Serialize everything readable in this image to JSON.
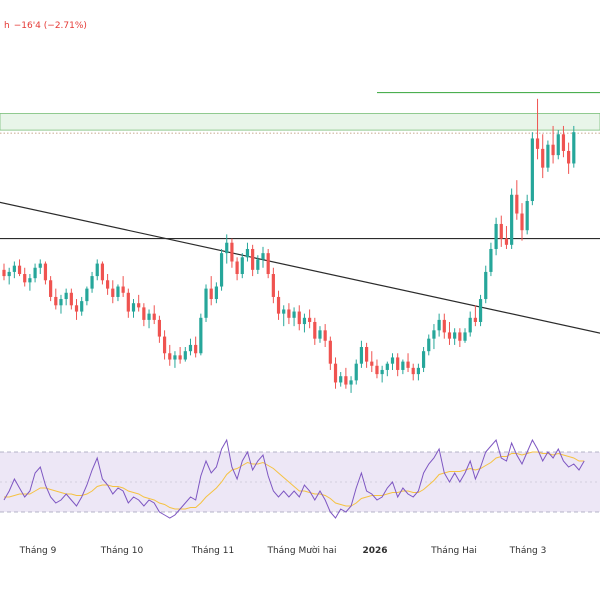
{
  "header": {
    "change_prefix": "h",
    "change_text": "−16'4 (−2.71%)"
  },
  "colors": {
    "up": "#26a69a",
    "down": "#ef5350",
    "trendline": "#2b2b2b",
    "resistance_line": "#2b2b2b",
    "supply_zone_fill": "#e8f5e9",
    "supply_zone_border": "#7bbf7b",
    "top_line": "#4caf50",
    "rsi_line": "#7e57c2",
    "rsi_ma": "#f5c242",
    "rsi_band": "#ede7f6"
  },
  "x_axis": {
    "labels": [
      "Tháng 9",
      "Tháng 10",
      "Tháng 11",
      "Tháng Mười hai",
      "2026",
      "Tháng Hai",
      "Tháng 3"
    ]
  },
  "chart_data": {
    "type": "candlestick",
    "price_series": [
      {
        "o": 565,
        "h": 568,
        "l": 560,
        "c": 562
      },
      {
        "o": 562,
        "h": 566,
        "l": 558,
        "c": 564
      },
      {
        "o": 564,
        "h": 569,
        "l": 561,
        "c": 567
      },
      {
        "o": 567,
        "h": 570,
        "l": 562,
        "c": 563
      },
      {
        "o": 563,
        "h": 566,
        "l": 557,
        "c": 559
      },
      {
        "o": 559,
        "h": 563,
        "l": 555,
        "c": 561
      },
      {
        "o": 561,
        "h": 568,
        "l": 559,
        "c": 566
      },
      {
        "o": 566,
        "h": 570,
        "l": 563,
        "c": 568
      },
      {
        "o": 568,
        "h": 569,
        "l": 558,
        "c": 560
      },
      {
        "o": 560,
        "h": 562,
        "l": 550,
        "c": 552
      },
      {
        "o": 552,
        "h": 556,
        "l": 546,
        "c": 548
      },
      {
        "o": 548,
        "h": 553,
        "l": 544,
        "c": 551
      },
      {
        "o": 551,
        "h": 556,
        "l": 548,
        "c": 554
      },
      {
        "o": 554,
        "h": 556,
        "l": 546,
        "c": 548
      },
      {
        "o": 548,
        "h": 551,
        "l": 541,
        "c": 545
      },
      {
        "o": 545,
        "h": 552,
        "l": 543,
        "c": 550
      },
      {
        "o": 550,
        "h": 557,
        "l": 548,
        "c": 556
      },
      {
        "o": 556,
        "h": 564,
        "l": 554,
        "c": 562
      },
      {
        "o": 562,
        "h": 570,
        "l": 560,
        "c": 568
      },
      {
        "o": 568,
        "h": 569,
        "l": 558,
        "c": 560
      },
      {
        "o": 560,
        "h": 563,
        "l": 553,
        "c": 556
      },
      {
        "o": 556,
        "h": 560,
        "l": 549,
        "c": 552
      },
      {
        "o": 552,
        "h": 558,
        "l": 550,
        "c": 557
      },
      {
        "o": 557,
        "h": 562,
        "l": 552,
        "c": 554
      },
      {
        "o": 554,
        "h": 556,
        "l": 542,
        "c": 545
      },
      {
        "o": 545,
        "h": 551,
        "l": 542,
        "c": 549
      },
      {
        "o": 549,
        "h": 553,
        "l": 545,
        "c": 547
      },
      {
        "o": 547,
        "h": 549,
        "l": 538,
        "c": 541
      },
      {
        "o": 541,
        "h": 546,
        "l": 537,
        "c": 544
      },
      {
        "o": 544,
        "h": 548,
        "l": 539,
        "c": 541
      },
      {
        "o": 541,
        "h": 543,
        "l": 530,
        "c": 533
      },
      {
        "o": 533,
        "h": 536,
        "l": 522,
        "c": 525
      },
      {
        "o": 525,
        "h": 529,
        "l": 519,
        "c": 522
      },
      {
        "o": 522,
        "h": 526,
        "l": 518,
        "c": 524
      },
      {
        "o": 524,
        "h": 528,
        "l": 520,
        "c": 522
      },
      {
        "o": 522,
        "h": 528,
        "l": 521,
        "c": 526
      },
      {
        "o": 526,
        "h": 532,
        "l": 524,
        "c": 529
      },
      {
        "o": 529,
        "h": 533,
        "l": 523,
        "c": 525
      },
      {
        "o": 525,
        "h": 544,
        "l": 524,
        "c": 542
      },
      {
        "o": 542,
        "h": 558,
        "l": 540,
        "c": 556
      },
      {
        "o": 556,
        "h": 562,
        "l": 548,
        "c": 551
      },
      {
        "o": 551,
        "h": 559,
        "l": 549,
        "c": 557
      },
      {
        "o": 557,
        "h": 575,
        "l": 555,
        "c": 573
      },
      {
        "o": 573,
        "h": 582,
        "l": 568,
        "c": 578
      },
      {
        "o": 578,
        "h": 580,
        "l": 566,
        "c": 569
      },
      {
        "o": 569,
        "h": 571,
        "l": 560,
        "c": 563
      },
      {
        "o": 563,
        "h": 573,
        "l": 561,
        "c": 571
      },
      {
        "o": 571,
        "h": 578,
        "l": 569,
        "c": 575
      },
      {
        "o": 575,
        "h": 577,
        "l": 562,
        "c": 565
      },
      {
        "o": 565,
        "h": 572,
        "l": 563,
        "c": 570
      },
      {
        "o": 570,
        "h": 576,
        "l": 566,
        "c": 573
      },
      {
        "o": 573,
        "h": 575,
        "l": 561,
        "c": 563
      },
      {
        "o": 563,
        "h": 566,
        "l": 549,
        "c": 552
      },
      {
        "o": 552,
        "h": 555,
        "l": 541,
        "c": 544
      },
      {
        "o": 544,
        "h": 548,
        "l": 538,
        "c": 546
      },
      {
        "o": 546,
        "h": 549,
        "l": 539,
        "c": 542
      },
      {
        "o": 542,
        "h": 547,
        "l": 538,
        "c": 545
      },
      {
        "o": 545,
        "h": 548,
        "l": 536,
        "c": 539
      },
      {
        "o": 539,
        "h": 544,
        "l": 535,
        "c": 542
      },
      {
        "o": 542,
        "h": 546,
        "l": 537,
        "c": 540
      },
      {
        "o": 540,
        "h": 542,
        "l": 529,
        "c": 532
      },
      {
        "o": 532,
        "h": 538,
        "l": 530,
        "c": 536
      },
      {
        "o": 536,
        "h": 539,
        "l": 528,
        "c": 531
      },
      {
        "o": 531,
        "h": 533,
        "l": 517,
        "c": 520
      },
      {
        "o": 520,
        "h": 523,
        "l": 508,
        "c": 511
      },
      {
        "o": 511,
        "h": 516,
        "l": 509,
        "c": 514
      },
      {
        "o": 514,
        "h": 518,
        "l": 508,
        "c": 510
      },
      {
        "o": 510,
        "h": 514,
        "l": 506,
        "c": 512
      },
      {
        "o": 512,
        "h": 522,
        "l": 510,
        "c": 520
      },
      {
        "o": 520,
        "h": 531,
        "l": 518,
        "c": 528
      },
      {
        "o": 528,
        "h": 530,
        "l": 518,
        "c": 521
      },
      {
        "o": 521,
        "h": 526,
        "l": 516,
        "c": 519
      },
      {
        "o": 519,
        "h": 522,
        "l": 513,
        "c": 515
      },
      {
        "o": 515,
        "h": 519,
        "l": 511,
        "c": 517
      },
      {
        "o": 517,
        "h": 521,
        "l": 514,
        "c": 520
      },
      {
        "o": 520,
        "h": 525,
        "l": 517,
        "c": 523
      },
      {
        "o": 523,
        "h": 525,
        "l": 514,
        "c": 517
      },
      {
        "o": 517,
        "h": 522,
        "l": 515,
        "c": 521
      },
      {
        "o": 521,
        "h": 525,
        "l": 516,
        "c": 518
      },
      {
        "o": 518,
        "h": 520,
        "l": 512,
        "c": 515
      },
      {
        "o": 515,
        "h": 520,
        "l": 512,
        "c": 518
      },
      {
        "o": 518,
        "h": 528,
        "l": 516,
        "c": 526
      },
      {
        "o": 526,
        "h": 534,
        "l": 524,
        "c": 532
      },
      {
        "o": 532,
        "h": 539,
        "l": 527,
        "c": 536
      },
      {
        "o": 536,
        "h": 544,
        "l": 533,
        "c": 541
      },
      {
        "o": 541,
        "h": 544,
        "l": 532,
        "c": 535
      },
      {
        "o": 535,
        "h": 540,
        "l": 529,
        "c": 532
      },
      {
        "o": 532,
        "h": 537,
        "l": 529,
        "c": 535
      },
      {
        "o": 535,
        "h": 537,
        "l": 528,
        "c": 531
      },
      {
        "o": 531,
        "h": 537,
        "l": 530,
        "c": 535
      },
      {
        "o": 535,
        "h": 545,
        "l": 533,
        "c": 542
      },
      {
        "o": 542,
        "h": 548,
        "l": 538,
        "c": 540
      },
      {
        "o": 540,
        "h": 553,
        "l": 538,
        "c": 551
      },
      {
        "o": 551,
        "h": 567,
        "l": 549,
        "c": 564
      },
      {
        "o": 564,
        "h": 578,
        "l": 562,
        "c": 575
      },
      {
        "o": 575,
        "h": 590,
        "l": 572,
        "c": 587
      },
      {
        "o": 587,
        "h": 591,
        "l": 576,
        "c": 580
      },
      {
        "o": 580,
        "h": 586,
        "l": 575,
        "c": 577
      },
      {
        "o": 577,
        "h": 604,
        "l": 575,
        "c": 601
      },
      {
        "o": 601,
        "h": 608,
        "l": 589,
        "c": 592
      },
      {
        "o": 592,
        "h": 597,
        "l": 579,
        "c": 584
      },
      {
        "o": 584,
        "h": 601,
        "l": 582,
        "c": 598
      },
      {
        "o": 598,
        "h": 631,
        "l": 596,
        "c": 628
      },
      {
        "o": 628,
        "h": 647,
        "l": 618,
        "c": 623
      },
      {
        "o": 623,
        "h": 630,
        "l": 609,
        "c": 614
      },
      {
        "o": 614,
        "h": 627,
        "l": 612,
        "c": 625
      },
      {
        "o": 625,
        "h": 634,
        "l": 616,
        "c": 620
      },
      {
        "o": 620,
        "h": 632,
        "l": 618,
        "c": 630
      },
      {
        "o": 630,
        "h": 634,
        "l": 619,
        "c": 622
      },
      {
        "o": 622,
        "h": 626,
        "l": 611,
        "c": 616
      },
      {
        "o": 616,
        "h": 634,
        "l": 614,
        "c": 631
      }
    ],
    "rsi_series": [
      38,
      44,
      52,
      46,
      40,
      44,
      56,
      60,
      48,
      40,
      36,
      38,
      42,
      38,
      34,
      40,
      48,
      58,
      66,
      52,
      48,
      42,
      46,
      44,
      36,
      40,
      38,
      34,
      38,
      36,
      30,
      28,
      26,
      28,
      32,
      36,
      40,
      38,
      54,
      64,
      56,
      60,
      72,
      78,
      60,
      52,
      64,
      70,
      58,
      64,
      68,
      54,
      44,
      40,
      44,
      40,
      44,
      40,
      48,
      44,
      38,
      44,
      38,
      30,
      26,
      32,
      30,
      34,
      46,
      56,
      44,
      42,
      38,
      40,
      46,
      50,
      40,
      46,
      42,
      40,
      44,
      56,
      62,
      66,
      72,
      56,
      50,
      56,
      50,
      56,
      64,
      52,
      60,
      70,
      74,
      78,
      66,
      64,
      76,
      68,
      62,
      70,
      78,
      72,
      64,
      70,
      66,
      72,
      64,
      60,
      62,
      58,
      64
    ],
    "rsi_ma_series": [
      40,
      40,
      41,
      42,
      42,
      42,
      44,
      46,
      46,
      45,
      44,
      43,
      42,
      42,
      41,
      41,
      42,
      44,
      47,
      48,
      48,
      47,
      47,
      46,
      44,
      43,
      42,
      40,
      39,
      38,
      36,
      35,
      33,
      32,
      32,
      32,
      33,
      33,
      36,
      40,
      43,
      46,
      50,
      55,
      58,
      59,
      61,
      63,
      62,
      62,
      63,
      61,
      59,
      56,
      53,
      50,
      47,
      44,
      44,
      43,
      42,
      42,
      41,
      39,
      36,
      35,
      34,
      34,
      36,
      39,
      40,
      41,
      41,
      41,
      42,
      43,
      43,
      44,
      44,
      43,
      43,
      45,
      48,
      51,
      55,
      56,
      57,
      57,
      57,
      58,
      59,
      58,
      59,
      61,
      63,
      66,
      67,
      67,
      69,
      69,
      68,
      69,
      70,
      70,
      69,
      69,
      68,
      69,
      68,
      67,
      66,
      64,
      64
    ],
    "supply_zone": [
      632,
      640
    ],
    "zone_dotted_line": 632,
    "top_resistance": 650,
    "horizontal_support": 580,
    "trendline": {
      "start_index": -2,
      "start_value": 598,
      "end_index": 120,
      "end_value": 532
    }
  }
}
